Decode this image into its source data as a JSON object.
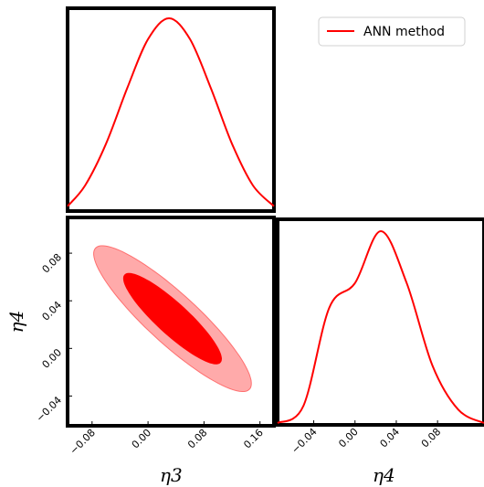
{
  "chart_data": {
    "type": "corner-plot",
    "legend": {
      "label": "ANN method",
      "color": "#ff0000",
      "placement": "top-right"
    },
    "panels": [
      {
        "id": "eta3-marginal",
        "type": "line",
        "x": [
          -0.115,
          -0.09,
          -0.06,
          -0.03,
          0.0,
          0.03,
          0.06,
          0.09,
          0.12,
          0.15,
          0.18
        ],
        "y": [
          0.011,
          0.12,
          0.34,
          0.63,
          0.89,
          1.0,
          0.89,
          0.63,
          0.34,
          0.12,
          0.011
        ],
        "xlim": [
          -0.115,
          0.18
        ],
        "color": "#ff0000"
      },
      {
        "id": "eta3-eta4-joint",
        "type": "contour",
        "mean": [
          0.035,
          0.025
        ],
        "sigma": [
          0.046,
          0.025
        ],
        "correlation": -0.89,
        "levels": [
          "68%",
          "95%"
        ],
        "fill_colors": [
          "#ff0000",
          "#ffaaaa"
        ],
        "edge_colors": [
          "#ff0000",
          "#ff6f6f"
        ],
        "xlim": [
          -0.115,
          0.18
        ],
        "ylim": [
          -0.065,
          0.11
        ],
        "x_ticks": [
          "−0.08",
          "0.00",
          "0.08",
          "0.16"
        ],
        "y_ticks": [
          "−0.04",
          "0.00",
          "0.04",
          "0.08"
        ],
        "xlabel": "η3",
        "ylabel": "η4"
      },
      {
        "id": "eta4-marginal",
        "type": "line",
        "x": [
          -0.075,
          -0.05,
          -0.025,
          0.0,
          0.025,
          0.05,
          0.075,
          0.1,
          0.125
        ],
        "y": [
          0.0,
          0.09,
          0.6,
          0.73,
          1.0,
          0.73,
          0.3,
          0.07,
          0.0
        ],
        "xlim": [
          -0.075,
          0.125
        ],
        "x_ticks": [
          "−0.04",
          "0.00",
          "0.04",
          "0.08"
        ],
        "xlabel": "η4",
        "color": "#ff0000"
      }
    ]
  }
}
